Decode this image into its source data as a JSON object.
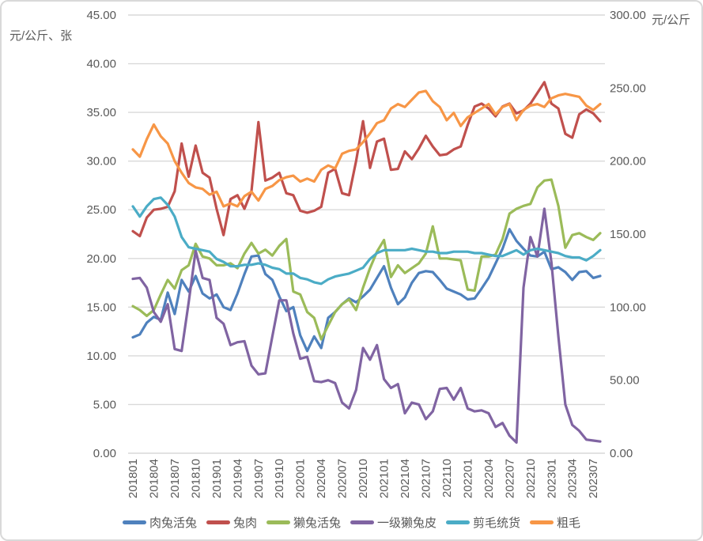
{
  "chart_data": {
    "type": "line",
    "grid": true,
    "legend_position": "bottom",
    "colors": {
      "grid": "#D9D9D9",
      "text": "#595959",
      "border": "#D9D9D9",
      "background": "#FFFFFF"
    },
    "x": [
      "201801",
      "201802",
      "201803",
      "201804",
      "201805",
      "201806",
      "201807",
      "201808",
      "201809",
      "201810",
      "201811",
      "201812",
      "201901",
      "201902",
      "201903",
      "201904",
      "201905",
      "201906",
      "201907",
      "201908",
      "201909",
      "201910",
      "201911",
      "201912",
      "202001",
      "202002",
      "202003",
      "202004",
      "202005",
      "202006",
      "202007",
      "202008",
      "202009",
      "202010",
      "202011",
      "202012",
      "202101",
      "202102",
      "202103",
      "202104",
      "202105",
      "202106",
      "202107",
      "202108",
      "202109",
      "202110",
      "202111",
      "202112",
      "202201",
      "202202",
      "202203",
      "202204",
      "202205",
      "202206",
      "202207",
      "202208",
      "202209",
      "202210",
      "202211",
      "202212",
      "202301",
      "202302",
      "202303",
      "202304",
      "202305",
      "202306",
      "202307",
      "202308"
    ],
    "x_tick_every": 3,
    "x_tick_labels": [
      "201801",
      "201804",
      "201807",
      "201810",
      "201901",
      "201904",
      "201907",
      "201910",
      "202001",
      "202004",
      "202007",
      "202010",
      "202101",
      "202104",
      "202107",
      "202110",
      "202201",
      "202204",
      "202207",
      "202210",
      "202301",
      "202304",
      "202307"
    ],
    "left_axis": {
      "title": "元/公斤、张",
      "min": 0,
      "max": 45,
      "step": 5,
      "tick_labels": [
        "0.00",
        "5.00",
        "10.00",
        "15.00",
        "20.00",
        "25.00",
        "30.00",
        "35.00",
        "40.00",
        "45.00"
      ]
    },
    "right_axis": {
      "title": "元/公斤",
      "min": 0,
      "max": 300,
      "step": 50,
      "tick_labels": [
        "0.00",
        "50.00",
        "100.00",
        "150.00",
        "200.00",
        "250.00",
        "300.00"
      ]
    },
    "series": [
      {
        "name": "肉兔活兔",
        "color": "#4F81BD",
        "axis": "left",
        "values": [
          11.9,
          12.2,
          13.4,
          14.0,
          13.7,
          16.5,
          14.3,
          17.8,
          16.6,
          18.2,
          16.4,
          15.9,
          16.3,
          15.0,
          14.7,
          16.4,
          18.4,
          20.2,
          20.3,
          18.4,
          17.8,
          16.1,
          14.6,
          15.0,
          12.1,
          10.5,
          12.0,
          10.8,
          13.9,
          14.5,
          15.3,
          15.9,
          15.5,
          16.1,
          16.8,
          18.0,
          19.2,
          17.0,
          15.3,
          16.0,
          17.5,
          18.5,
          18.7,
          18.6,
          17.8,
          16.9,
          16.6,
          16.3,
          15.8,
          15.9,
          16.9,
          18.0,
          19.5,
          21.0,
          23.0,
          21.8,
          21.0,
          20.3,
          20.2,
          20.7,
          18.9,
          19.1,
          18.6,
          17.8,
          18.6,
          18.7,
          18.0,
          18.2
        ]
      },
      {
        "name": "兔肉",
        "color": "#C0504D",
        "axis": "left",
        "values": [
          22.8,
          22.3,
          24.2,
          25.0,
          25.1,
          25.3,
          26.9,
          31.8,
          28.4,
          31.6,
          28.8,
          28.3,
          25.1,
          22.4,
          26.1,
          26.5,
          25.1,
          26.9,
          34.0,
          28.0,
          28.3,
          28.8,
          26.7,
          26.5,
          24.9,
          24.7,
          24.9,
          25.3,
          28.8,
          29.2,
          26.7,
          26.5,
          30.0,
          34.1,
          29.3,
          32.0,
          32.3,
          29.1,
          29.2,
          31.0,
          30.2,
          31.3,
          32.6,
          31.5,
          30.6,
          30.7,
          31.2,
          31.5,
          33.7,
          35.6,
          35.9,
          35.4,
          34.6,
          35.6,
          35.9,
          34.9,
          35.2,
          35.9,
          37.0,
          38.1,
          35.9,
          35.4,
          32.8,
          32.4,
          34.8,
          35.3,
          34.9,
          34.1
        ]
      },
      {
        "name": "獭兔活兔",
        "color": "#9BBB59",
        "axis": "left",
        "values": [
          15.1,
          14.7,
          14.1,
          14.7,
          16.3,
          17.8,
          16.9,
          18.8,
          19.3,
          21.5,
          20.2,
          20.0,
          19.3,
          19.3,
          19.5,
          19.0,
          20.5,
          21.6,
          20.5,
          20.9,
          20.3,
          21.3,
          22.0,
          16.6,
          16.3,
          14.5,
          13.9,
          11.7,
          13.1,
          14.5,
          15.3,
          15.8,
          14.7,
          17.0,
          19.0,
          20.7,
          21.9,
          18.1,
          19.3,
          18.5,
          19.0,
          19.5,
          20.5,
          23.3,
          20.0,
          20.0,
          19.9,
          19.8,
          16.8,
          16.7,
          20.2,
          20.2,
          20.4,
          22.0,
          24.6,
          25.1,
          25.4,
          25.6,
          27.3,
          28.0,
          28.1,
          25.4,
          21.1,
          22.4,
          22.6,
          22.2,
          21.9,
          22.6
        ]
      },
      {
        "name": "一级獭兔皮",
        "color": "#8064A2",
        "axis": "left",
        "values": [
          17.9,
          18.0,
          17.0,
          14.5,
          13.5,
          15.3,
          10.7,
          10.5,
          15.5,
          20.8,
          18.0,
          17.8,
          13.9,
          13.3,
          11.1,
          11.4,
          11.5,
          9.0,
          8.1,
          8.2,
          12.0,
          15.7,
          15.7,
          12.3,
          9.7,
          9.9,
          7.4,
          7.3,
          7.5,
          7.2,
          5.2,
          4.6,
          6.5,
          10.8,
          9.6,
          11.1,
          7.6,
          6.7,
          7.1,
          4.1,
          5.2,
          5.0,
          3.5,
          4.3,
          6.6,
          6.7,
          5.5,
          6.7,
          4.6,
          4.3,
          4.4,
          4.1,
          2.7,
          3.1,
          1.8,
          1.1,
          17.0,
          22.2,
          20.2,
          25.1,
          19.6,
          12.0,
          5.0,
          2.9,
          2.3,
          1.4,
          1.3,
          1.2
        ]
      },
      {
        "name": "剪毛统货",
        "color": "#4BACC6",
        "axis": "right",
        "values": [
          169,
          162,
          169,
          174,
          175,
          170,
          162,
          148,
          141,
          140,
          139,
          138,
          133,
          131,
          128,
          128,
          129,
          129,
          130,
          129,
          127,
          126,
          123,
          123,
          120,
          119,
          117,
          116,
          119,
          121,
          122,
          123,
          125,
          127,
          133,
          137,
          139,
          139,
          139,
          139,
          140,
          139,
          138,
          138,
          137,
          137,
          138,
          138,
          138,
          137,
          137,
          136,
          135,
          135,
          137,
          139,
          136,
          139,
          140,
          139,
          138,
          137,
          135,
          134,
          134,
          132,
          135,
          139
        ]
      },
      {
        "name": "粗毛",
        "color": "#F79646",
        "axis": "right",
        "values": [
          208,
          203,
          215,
          225,
          217,
          212,
          200,
          192,
          185,
          182,
          181,
          177,
          179,
          169,
          171,
          169,
          176,
          179,
          173,
          181,
          183,
          187,
          189,
          190,
          186,
          188,
          186,
          194,
          197,
          195,
          205,
          207,
          208,
          213,
          219,
          226,
          228,
          236,
          239,
          237,
          242,
          247,
          248,
          241,
          237,
          228,
          233,
          224,
          230,
          233,
          236,
          239,
          232,
          237,
          239,
          228,
          235,
          238,
          239,
          237,
          243,
          245,
          246,
          245,
          244,
          238,
          235,
          239
        ]
      }
    ]
  }
}
